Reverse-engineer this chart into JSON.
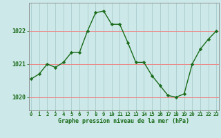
{
  "x": [
    0,
    1,
    2,
    3,
    4,
    5,
    6,
    7,
    8,
    9,
    10,
    11,
    12,
    13,
    14,
    15,
    16,
    17,
    18,
    19,
    20,
    21,
    22,
    23
  ],
  "y": [
    1020.55,
    1020.7,
    1021.0,
    1020.9,
    1021.05,
    1021.35,
    1021.35,
    1022.0,
    1022.55,
    1022.6,
    1022.2,
    1022.2,
    1021.65,
    1021.05,
    1021.05,
    1020.65,
    1020.35,
    1020.05,
    1020.0,
    1020.1,
    1021.0,
    1021.45,
    1021.75,
    1022.0
  ],
  "line_color": "#1a6b1a",
  "marker_color": "#1a6b1a",
  "bg_color": "#cce8e8",
  "xlabel": "Graphe pression niveau de la mer (hPa)",
  "xlabel_color": "#1a6b1a",
  "tick_color": "#1a6b1a",
  "ylabel_ticks": [
    1020,
    1021,
    1022
  ],
  "ylim": [
    1019.6,
    1022.85
  ],
  "xlim": [
    -0.3,
    23.3
  ],
  "grid_major_color": "#ee8888",
  "grid_minor_color": "#aacccc",
  "spine_color": "#888888"
}
